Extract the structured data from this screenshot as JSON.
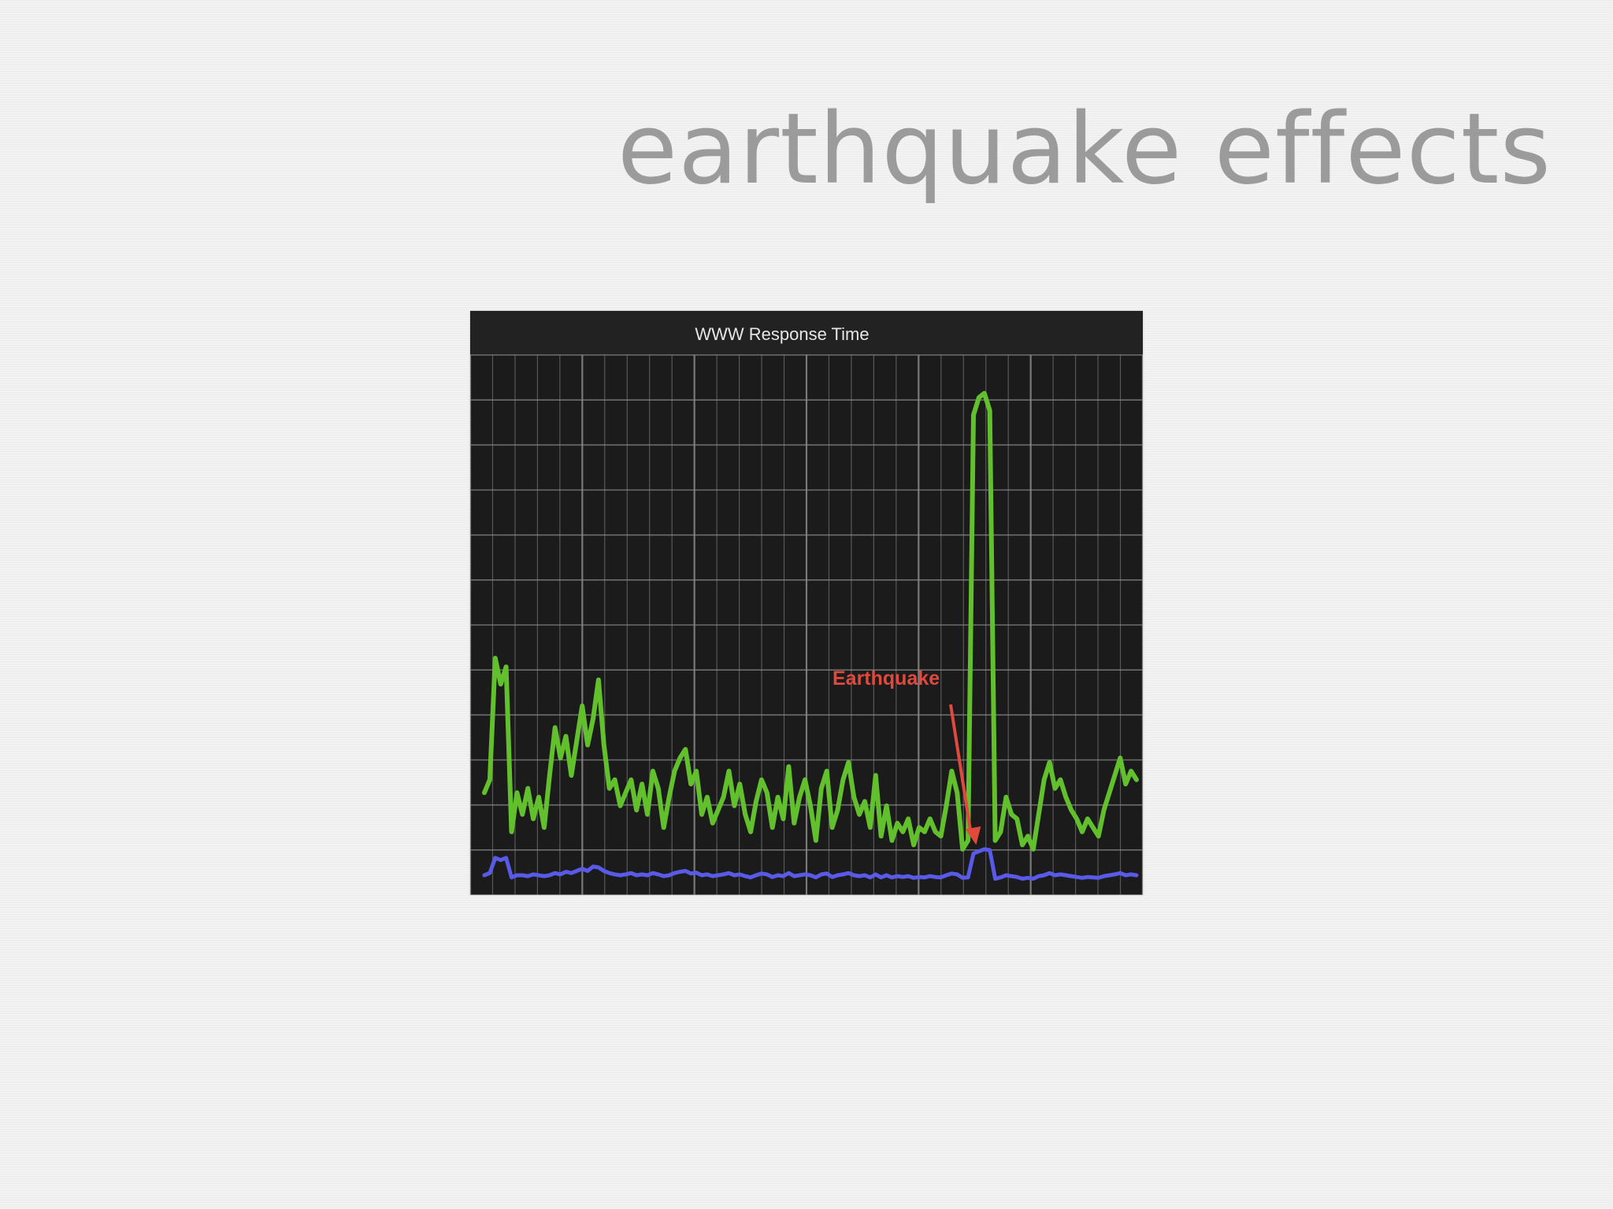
{
  "slide": {
    "title": "earthquake effects"
  },
  "colors": {
    "background": "#f0f0f0",
    "title": "#9b9b9b",
    "chart_background": "#1b1b1b",
    "grid": "#8a8a8a",
    "series_green": "#62c02d",
    "series_blue": "#5a5ae8",
    "annotation": "#e0493c"
  },
  "chart_data": {
    "type": "line",
    "title": "WWW Response Time",
    "xlabel": "",
    "ylabel": "",
    "grid": true,
    "xlim": [
      0,
      120
    ],
    "ylim": [
      0,
      12
    ],
    "series": [
      {
        "color": "#62c02d",
        "x": [
          0,
          1,
          2,
          3,
          4,
          5,
          6,
          7,
          8,
          9,
          10,
          11,
          12,
          13,
          14,
          15,
          16,
          17,
          18,
          19,
          20,
          21,
          22,
          23,
          24,
          25,
          26,
          27,
          28,
          29,
          30,
          31,
          32,
          33,
          34,
          35,
          36,
          37,
          38,
          39,
          40,
          41,
          42,
          43,
          44,
          45,
          46,
          47,
          48,
          49,
          50,
          51,
          52,
          53,
          54,
          55,
          56,
          57,
          58,
          59,
          60,
          61,
          62,
          63,
          64,
          65,
          66,
          67,
          68,
          69,
          70,
          71,
          72,
          73,
          74,
          75,
          76,
          77,
          78,
          79,
          80,
          81,
          82,
          83,
          84,
          85,
          86,
          87,
          88,
          89,
          90,
          91,
          92,
          93,
          94,
          95,
          96,
          97,
          98,
          99,
          100,
          101,
          102,
          103,
          104,
          105,
          106,
          107,
          108,
          109,
          110,
          111,
          112,
          113,
          114,
          115,
          116,
          117,
          118,
          119,
          120
        ],
        "values": [
          2.1,
          2.4,
          5.2,
          4.6,
          5.0,
          1.2,
          2.1,
          1.6,
          2.2,
          1.5,
          2.0,
          1.3,
          2.5,
          3.6,
          2.9,
          3.4,
          2.5,
          3.3,
          4.1,
          3.2,
          3.8,
          4.7,
          3.2,
          2.2,
          2.4,
          1.8,
          2.1,
          2.4,
          1.7,
          2.3,
          1.6,
          2.6,
          2.2,
          1.3,
          2.0,
          2.6,
          2.9,
          3.1,
          2.3,
          2.6,
          1.6,
          2.0,
          1.4,
          1.7,
          2.0,
          2.6,
          1.8,
          2.3,
          1.6,
          1.2,
          1.9,
          2.4,
          2.1,
          1.3,
          2.0,
          1.5,
          2.7,
          1.4,
          2.0,
          2.4,
          1.8,
          1.0,
          2.2,
          2.6,
          1.3,
          1.7,
          2.4,
          2.8,
          2.0,
          1.6,
          1.9,
          1.3,
          2.5,
          1.1,
          1.8,
          1.0,
          1.4,
          1.2,
          1.5,
          0.9,
          1.3,
          1.2,
          1.5,
          1.2,
          1.1,
          1.8,
          2.6,
          2.1,
          0.8,
          1.0,
          10.8,
          11.2,
          11.3,
          10.9,
          1.0,
          1.2,
          2.0,
          1.6,
          1.5,
          0.9,
          1.1,
          0.8,
          1.6,
          2.4,
          2.8,
          2.2,
          2.4,
          2.0,
          1.7,
          1.5,
          1.2,
          1.5,
          1.3,
          1.1,
          1.7,
          2.1,
          2.5,
          2.9,
          2.3,
          2.6,
          2.4
        ]
      },
      {
        "color": "#5a5ae8",
        "x": [
          0,
          1,
          2,
          3,
          4,
          5,
          6,
          7,
          8,
          9,
          10,
          11,
          12,
          13,
          14,
          15,
          16,
          17,
          18,
          19,
          20,
          21,
          22,
          23,
          24,
          25,
          26,
          27,
          28,
          29,
          30,
          31,
          32,
          33,
          34,
          35,
          36,
          37,
          38,
          39,
          40,
          41,
          42,
          43,
          44,
          45,
          46,
          47,
          48,
          49,
          50,
          51,
          52,
          53,
          54,
          55,
          56,
          57,
          58,
          59,
          60,
          61,
          62,
          63,
          64,
          65,
          66,
          67,
          68,
          69,
          70,
          71,
          72,
          73,
          74,
          75,
          76,
          77,
          78,
          79,
          80,
          81,
          82,
          83,
          84,
          85,
          86,
          87,
          88,
          89,
          90,
          91,
          92,
          93,
          94,
          95,
          96,
          97,
          98,
          99,
          100,
          101,
          102,
          103,
          104,
          105,
          106,
          107,
          108,
          109,
          110,
          111,
          112,
          113,
          114,
          115,
          116,
          117,
          118,
          119,
          120
        ],
        "values": [
          0.2,
          0.25,
          0.6,
          0.55,
          0.6,
          0.15,
          0.2,
          0.2,
          0.18,
          0.22,
          0.2,
          0.18,
          0.2,
          0.25,
          0.22,
          0.28,
          0.25,
          0.3,
          0.35,
          0.3,
          0.4,
          0.38,
          0.3,
          0.25,
          0.22,
          0.2,
          0.22,
          0.25,
          0.2,
          0.22,
          0.2,
          0.25,
          0.22,
          0.18,
          0.2,
          0.25,
          0.28,
          0.3,
          0.24,
          0.26,
          0.2,
          0.22,
          0.18,
          0.2,
          0.22,
          0.25,
          0.2,
          0.22,
          0.18,
          0.15,
          0.2,
          0.24,
          0.22,
          0.16,
          0.2,
          0.18,
          0.25,
          0.18,
          0.2,
          0.22,
          0.2,
          0.15,
          0.22,
          0.24,
          0.16,
          0.2,
          0.22,
          0.25,
          0.2,
          0.18,
          0.2,
          0.15,
          0.22,
          0.15,
          0.2,
          0.15,
          0.18,
          0.16,
          0.18,
          0.14,
          0.16,
          0.15,
          0.18,
          0.16,
          0.15,
          0.2,
          0.24,
          0.22,
          0.14,
          0.15,
          0.7,
          0.75,
          0.8,
          0.78,
          0.12,
          0.15,
          0.2,
          0.18,
          0.16,
          0.12,
          0.14,
          0.12,
          0.18,
          0.2,
          0.25,
          0.2,
          0.22,
          0.2,
          0.18,
          0.16,
          0.14,
          0.16,
          0.15,
          0.14,
          0.18,
          0.2,
          0.22,
          0.25,
          0.2,
          0.22,
          0.2
        ]
      }
    ],
    "annotations": [
      {
        "text": "Earthquake",
        "color": "#e0493c",
        "arrow_to": [
          90.5,
          0.9
        ]
      }
    ]
  }
}
